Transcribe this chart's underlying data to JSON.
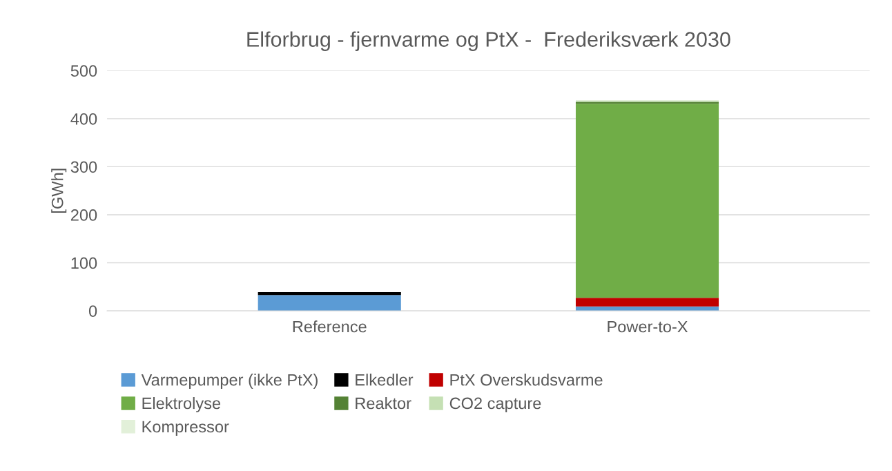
{
  "chart_data": {
    "type": "bar",
    "title": "Elforbrug - fjernvarme og PtX -  Frederiksværk 2030",
    "ylabel": "[GWh]",
    "categories": [
      "Reference",
      "Power-to-X"
    ],
    "stacked": true,
    "series": [
      {
        "name": "Varmepumper (ikke PtX)",
        "color": "#5b9bd5",
        "values": [
          33,
          9
        ]
      },
      {
        "name": "Elkedler",
        "color": "#000000",
        "values": [
          6,
          null
        ]
      },
      {
        "name": "PtX Overskudsvarme",
        "color": "#c00000",
        "values": [
          null,
          18
        ]
      },
      {
        "name": "Elektrolyse",
        "color": "#70ad47",
        "values": [
          null,
          404
        ]
      },
      {
        "name": "Reaktor",
        "color": "#548235",
        "values": [
          null,
          4
        ]
      },
      {
        "name": "CO2 capture",
        "color": "#c5e0b4",
        "values": [
          null,
          3
        ]
      },
      {
        "name": "Kompressor",
        "color": "#e2f0d9",
        "values": [
          null,
          null
        ]
      }
    ],
    "ylim": [
      0,
      500
    ],
    "yticks": [
      0,
      100,
      200,
      300,
      400,
      500
    ],
    "grid": "y",
    "legend": "bottom"
  }
}
